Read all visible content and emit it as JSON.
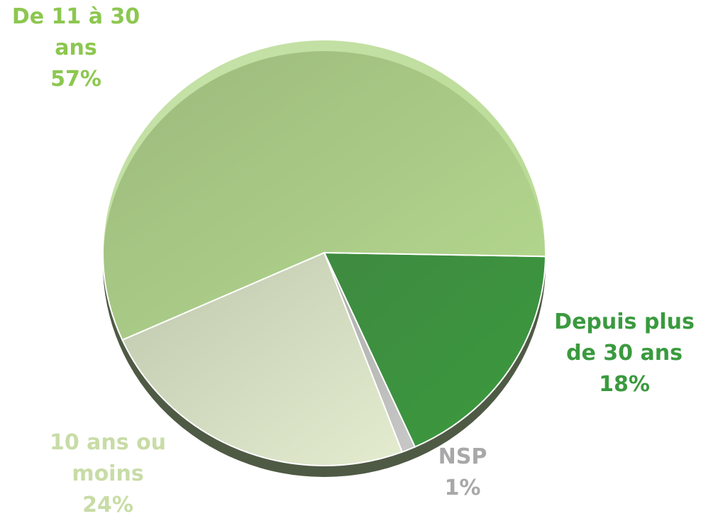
{
  "chart_data": {
    "type": "pie",
    "categories": [
      "Depuis plus de 30 ans",
      "NSP",
      "10 ans ou moins",
      "De 11 à 30 ans"
    ],
    "values": [
      18,
      1,
      24,
      57
    ],
    "value_labels": [
      "18%",
      "1%",
      "24%",
      "57%"
    ],
    "colors": [
      "#3a9a3e",
      "#c8c8c8",
      "#e4ecd0",
      "#b5d98f"
    ],
    "label_colors": [
      "#3a9a3e",
      "#a8a8a8",
      "#c8dca6",
      "#8cc74f"
    ]
  }
}
